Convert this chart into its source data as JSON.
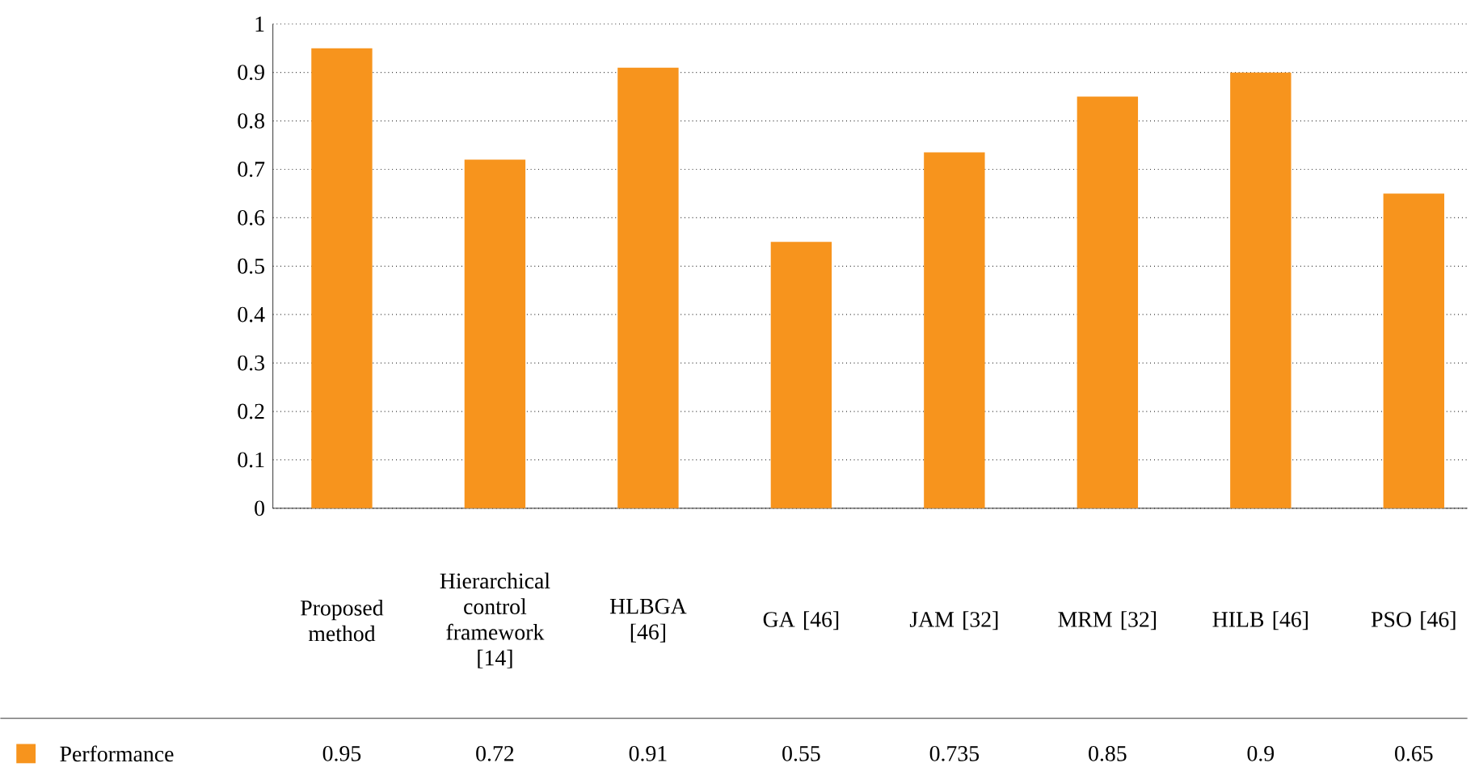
{
  "chart_data": {
    "type": "bar",
    "categories": [
      "Proposed method",
      "Hierarchical control framework [14]",
      "HLBGA [46]",
      "GA [46]",
      "JAM [32]",
      "MRM [32]",
      "HILB [46]",
      "PSO [46]"
    ],
    "series": [
      {
        "name": "Performance",
        "color": "#f7941d",
        "values": [
          0.95,
          0.72,
          0.91,
          0.55,
          0.735,
          0.85,
          0.9,
          0.65
        ]
      }
    ],
    "ylim": [
      0,
      1
    ],
    "yticks": [
      0,
      0.1,
      0.2,
      0.3,
      0.4,
      0.5,
      0.6,
      0.7,
      0.8,
      0.9,
      1
    ],
    "grid": "y",
    "legend": "bottom left",
    "data_labels": true
  }
}
